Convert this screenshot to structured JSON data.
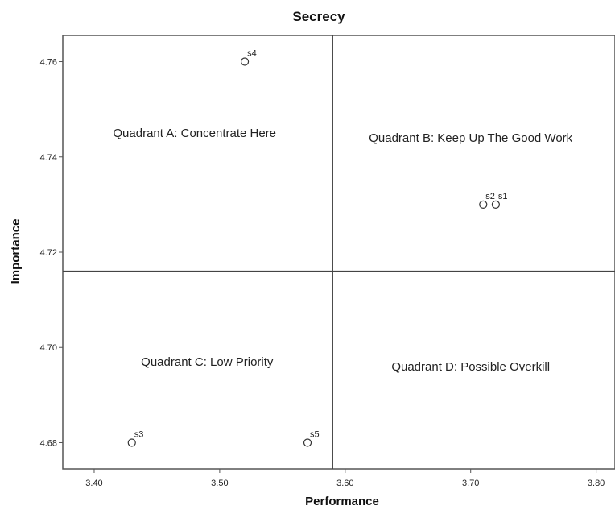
{
  "chart_data": {
    "type": "scatter",
    "title": "Secrecy",
    "xlabel": "Performance",
    "ylabel": "Importance",
    "xlim": [
      3.375,
      3.815
    ],
    "ylim": [
      4.6745,
      4.7655
    ],
    "x_ticks": [
      "3.40",
      "3.50",
      "3.60",
      "3.70",
      "3.80"
    ],
    "y_ticks": [
      "4.68",
      "4.70",
      "4.72",
      "4.74",
      "4.76"
    ],
    "reference_lines": {
      "x": 3.59,
      "y": 4.716
    },
    "quadrants": [
      {
        "label": "Quadrant A: Concentrate Here",
        "x": 3.48,
        "y": 4.745
      },
      {
        "label": "Quadrant B: Keep Up The Good Work",
        "x": 3.7,
        "y": 4.744
      },
      {
        "label": "Quadrant C: Low Priority",
        "x": 3.49,
        "y": 4.697
      },
      {
        "label": "Quadrant D: Possible Overkill",
        "x": 3.7,
        "y": 4.696
      }
    ],
    "points": [
      {
        "label": "s1",
        "x": 3.72,
        "y": 4.73
      },
      {
        "label": "s2",
        "x": 3.71,
        "y": 4.73
      },
      {
        "label": "s3",
        "x": 3.43,
        "y": 4.68
      },
      {
        "label": "s4",
        "x": 3.52,
        "y": 4.76
      },
      {
        "label": "s5",
        "x": 3.57,
        "y": 4.68
      }
    ],
    "grid": false,
    "marker": "open-circle"
  }
}
